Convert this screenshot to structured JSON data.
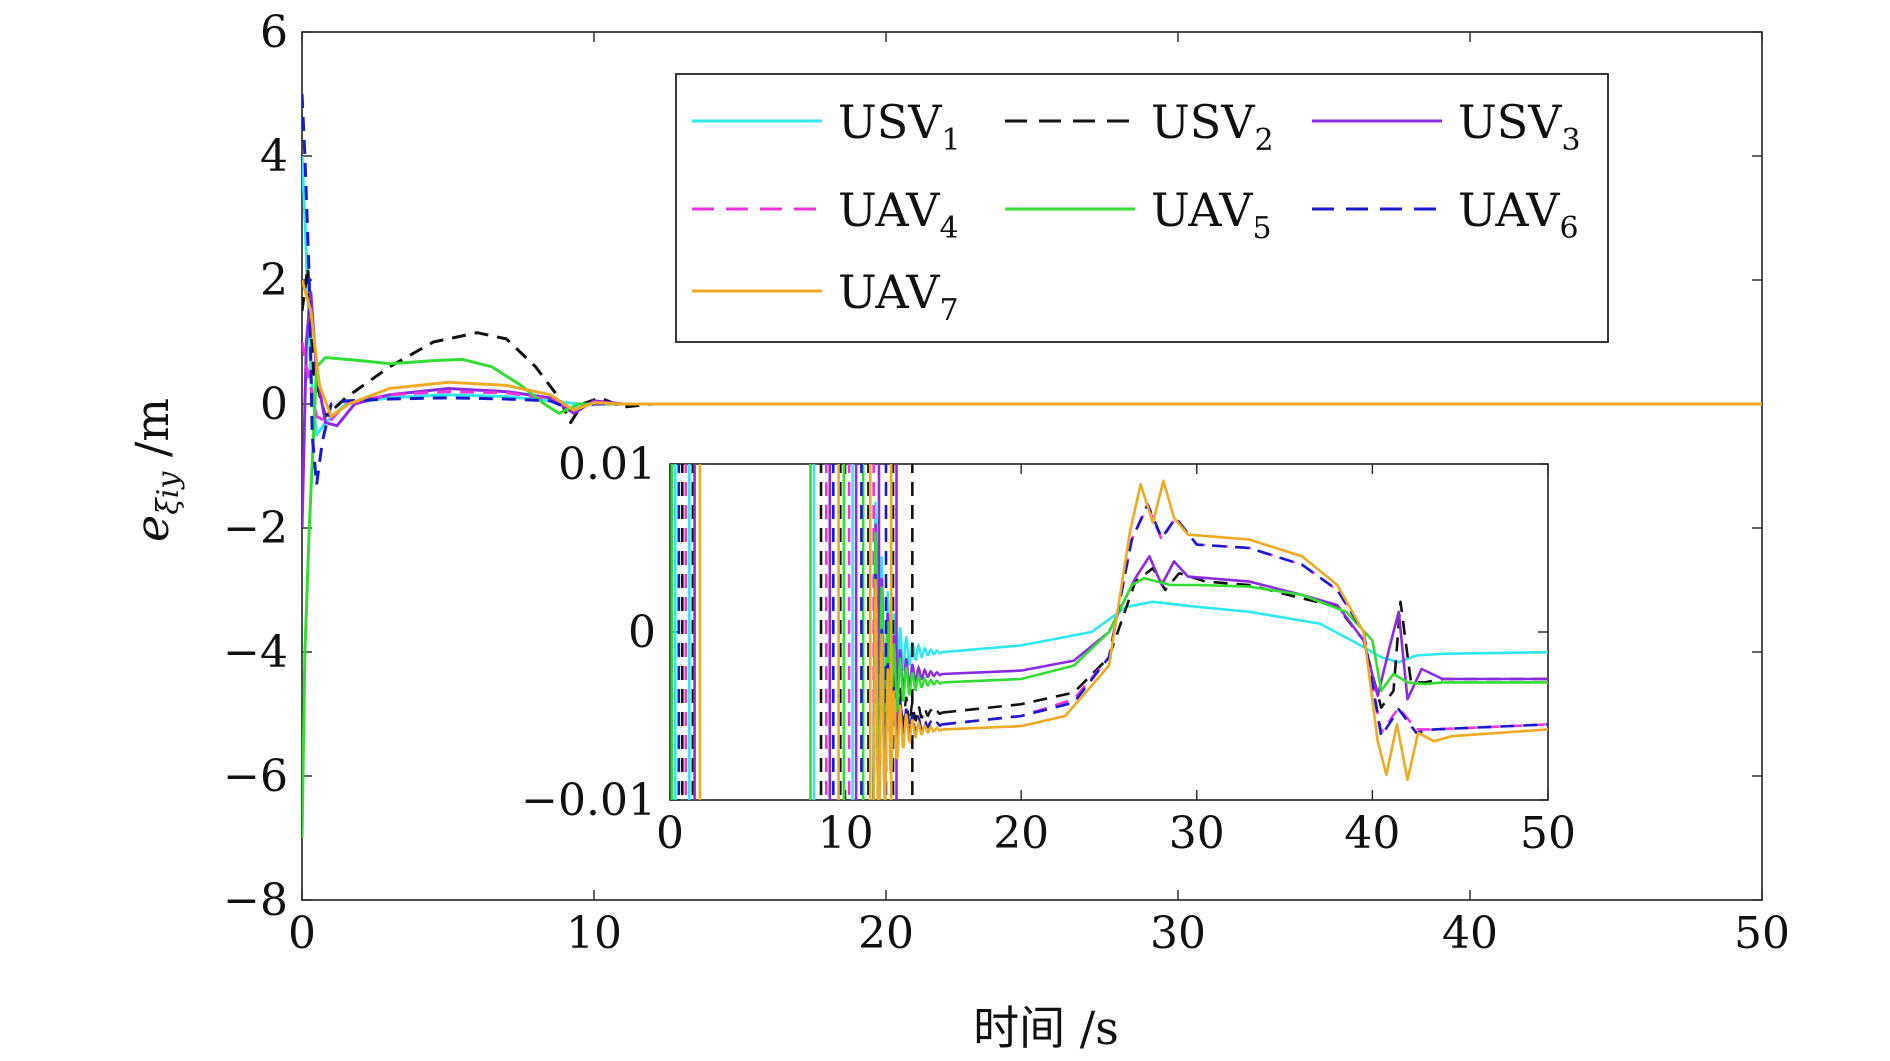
{
  "chart_data": [
    {
      "type": "line",
      "role": "main",
      "xlabel": "时间 /s",
      "ylabel": "e_ξiy /m",
      "ylabel_parts": {
        "base": "e",
        "sub": "ξiy",
        "unit": " /m"
      },
      "xlim": [
        0,
        50
      ],
      "ylim": [
        -8,
        6
      ],
      "xticks": [
        "0",
        "10",
        "20",
        "30",
        "40",
        "50"
      ],
      "yticks": [
        "6",
        "4",
        "2",
        "0",
        "−2",
        "−4",
        "−6",
        "−8"
      ],
      "grid": false,
      "legend_position": "top-right",
      "legend": [
        {
          "base": "USV",
          "sub": "1",
          "color": "#2ee8ee",
          "style": "solid"
        },
        {
          "base": "USV",
          "sub": "2",
          "color": "#111111",
          "style": "dashed"
        },
        {
          "base": "USV",
          "sub": "3",
          "color": "#8a2be2",
          "style": "solid"
        },
        {
          "base": "UAV",
          "sub": "4",
          "color": "#ee33dd",
          "style": "dashed"
        },
        {
          "base": "UAV",
          "sub": "5",
          "color": "#33dd33",
          "style": "solid"
        },
        {
          "base": "UAV",
          "sub": "6",
          "color": "#1a1acc",
          "style": "dashed"
        },
        {
          "base": "UAV",
          "sub": "7",
          "color": "#eeaa22",
          "style": "solid"
        }
      ],
      "series": [
        {
          "name": "USV1",
          "points": [
            [
              0,
              4.0
            ],
            [
              0.1,
              3.0
            ],
            [
              0.3,
              0.5
            ],
            [
              0.5,
              -0.5
            ],
            [
              0.8,
              -0.3
            ],
            [
              1.5,
              0.0
            ],
            [
              3,
              0.1
            ],
            [
              5,
              0.15
            ],
            [
              7,
              0.12
            ],
            [
              8.5,
              0.05
            ],
            [
              9.5,
              0.0
            ],
            [
              11,
              0.0
            ],
            [
              50,
              0.0
            ]
          ]
        },
        {
          "name": "USV2",
          "points": [
            [
              0,
              1.5
            ],
            [
              0.2,
              2.2
            ],
            [
              0.4,
              0.5
            ],
            [
              0.8,
              -0.2
            ],
            [
              1.5,
              0.1
            ],
            [
              3,
              0.6
            ],
            [
              4.5,
              1.0
            ],
            [
              6,
              1.15
            ],
            [
              7,
              1.05
            ],
            [
              8,
              0.6
            ],
            [
              8.8,
              0.1
            ],
            [
              9.2,
              -0.3
            ],
            [
              9.6,
              0.0
            ],
            [
              10.2,
              0.1
            ],
            [
              11,
              -0.05
            ],
            [
              12,
              0.0
            ],
            [
              50,
              0.0
            ]
          ]
        },
        {
          "name": "USV3",
          "points": [
            [
              0,
              -2.0
            ],
            [
              0.15,
              1.0
            ],
            [
              0.3,
              1.8
            ],
            [
              0.5,
              0.5
            ],
            [
              0.8,
              -0.3
            ],
            [
              1.2,
              -0.35
            ],
            [
              1.8,
              0.0
            ],
            [
              3,
              0.15
            ],
            [
              5,
              0.25
            ],
            [
              7,
              0.2
            ],
            [
              8.5,
              0.1
            ],
            [
              9.3,
              -0.15
            ],
            [
              10,
              0.05
            ],
            [
              11,
              0.0
            ],
            [
              50,
              0.0
            ]
          ]
        },
        {
          "name": "UAV4",
          "points": [
            [
              0,
              1.0
            ],
            [
              0.2,
              0.5
            ],
            [
              0.5,
              -0.2
            ],
            [
              0.9,
              -0.3
            ],
            [
              1.5,
              0.0
            ],
            [
              3,
              0.15
            ],
            [
              5,
              0.2
            ],
            [
              7,
              0.18
            ],
            [
              8.5,
              0.08
            ],
            [
              9.3,
              -0.1
            ],
            [
              10,
              0.03
            ],
            [
              11,
              0.0
            ],
            [
              50,
              0.0
            ]
          ]
        },
        {
          "name": "UAV5",
          "points": [
            [
              0,
              -7.0
            ],
            [
              0.1,
              -4.0
            ],
            [
              0.25,
              -2.0
            ],
            [
              0.5,
              0.6
            ],
            [
              0.8,
              0.75
            ],
            [
              2,
              0.7
            ],
            [
              3,
              0.65
            ],
            [
              4.5,
              0.7
            ],
            [
              5.5,
              0.72
            ],
            [
              6.5,
              0.6
            ],
            [
              7.5,
              0.3
            ],
            [
              8.3,
              0.0
            ],
            [
              8.8,
              -0.15
            ],
            [
              9.5,
              0.0
            ],
            [
              11,
              0.0
            ],
            [
              50,
              0.0
            ]
          ]
        },
        {
          "name": "UAV6",
          "points": [
            [
              0,
              5.0
            ],
            [
              0.1,
              4.0
            ],
            [
              0.25,
              2.0
            ],
            [
              0.35,
              -0.5
            ],
            [
              0.5,
              -1.3
            ],
            [
              0.7,
              -0.6
            ],
            [
              1.0,
              0.0
            ],
            [
              1.5,
              0.05
            ],
            [
              3,
              0.08
            ],
            [
              5,
              0.1
            ],
            [
              7,
              0.08
            ],
            [
              8.5,
              0.05
            ],
            [
              9.3,
              -0.1
            ],
            [
              10,
              0.0
            ],
            [
              50,
              0.0
            ]
          ]
        },
        {
          "name": "UAV7",
          "points": [
            [
              0,
              2.0
            ],
            [
              0.3,
              1.5
            ],
            [
              0.6,
              0.3
            ],
            [
              1.0,
              -0.2
            ],
            [
              1.6,
              0.0
            ],
            [
              3,
              0.25
            ],
            [
              5,
              0.35
            ],
            [
              7,
              0.3
            ],
            [
              8.5,
              0.15
            ],
            [
              9.3,
              -0.1
            ],
            [
              10,
              0.02
            ],
            [
              11,
              0.0
            ],
            [
              50,
              0.0
            ]
          ]
        }
      ]
    },
    {
      "type": "line",
      "role": "inset",
      "xlim": [
        0,
        50
      ],
      "ylim": [
        -0.01,
        0.01
      ],
      "xticks": [
        "0",
        "10",
        "20",
        "30",
        "40",
        "50"
      ],
      "yticks": [
        "0.01",
        "0",
        "−0.01"
      ],
      "series": [
        {
          "name": "USV1",
          "points": [
            [
              15.5,
              -0.0012
            ],
            [
              20,
              -0.0008
            ],
            [
              24,
              0.0
            ],
            [
              26,
              0.0015
            ],
            [
              27.5,
              0.0018
            ],
            [
              30,
              0.0015
            ],
            [
              33,
              0.0012
            ],
            [
              37,
              0.0005
            ],
            [
              39,
              -0.0006
            ],
            [
              40.5,
              -0.0015
            ],
            [
              41.5,
              -0.0018
            ],
            [
              42.5,
              -0.0014
            ],
            [
              44,
              -0.0013
            ],
            [
              50,
              -0.0012
            ]
          ]
        },
        {
          "name": "USV2",
          "points": [
            [
              15.5,
              -0.0048
            ],
            [
              20,
              -0.0043
            ],
            [
              23,
              -0.0036
            ],
            [
              25,
              -0.0015
            ],
            [
              26.5,
              0.003
            ],
            [
              27.5,
              0.0038
            ],
            [
              28.2,
              0.0025
            ],
            [
              29,
              0.0035
            ],
            [
              30.5,
              0.003
            ],
            [
              33,
              0.0028
            ],
            [
              36,
              0.002
            ],
            [
              38,
              0.0015
            ],
            [
              39.5,
              -0.0005
            ],
            [
              40.5,
              -0.0045
            ],
            [
              41.2,
              -0.0035
            ],
            [
              41.6,
              0.0018
            ],
            [
              42.2,
              -0.003
            ],
            [
              43,
              -0.003
            ],
            [
              44,
              -0.0028
            ],
            [
              50,
              -0.0028
            ]
          ]
        },
        {
          "name": "USV3",
          "points": [
            [
              15.5,
              -0.0025
            ],
            [
              20,
              -0.0023
            ],
            [
              23,
              -0.0017
            ],
            [
              25,
              0.0
            ],
            [
              26.5,
              0.0032
            ],
            [
              27.3,
              0.0045
            ],
            [
              28,
              0.0028
            ],
            [
              28.7,
              0.0042
            ],
            [
              29.5,
              0.0033
            ],
            [
              33,
              0.003
            ],
            [
              36,
              0.0022
            ],
            [
              38,
              0.0016
            ],
            [
              39.5,
              -0.0005
            ],
            [
              40.3,
              -0.0038
            ],
            [
              41,
              -0.0008
            ],
            [
              41.5,
              0.0012
            ],
            [
              42,
              -0.004
            ],
            [
              42.8,
              -0.0022
            ],
            [
              44,
              -0.0028
            ],
            [
              50,
              -0.0028
            ]
          ]
        },
        {
          "name": "UAV4",
          "points": [
            [
              15.5,
              -0.0055
            ],
            [
              20,
              -0.005
            ],
            [
              23,
              -0.004
            ],
            [
              25,
              -0.0015
            ],
            [
              26.3,
              0.0055
            ],
            [
              27.2,
              0.0075
            ],
            [
              28,
              0.0055
            ],
            [
              28.8,
              0.0068
            ],
            [
              30,
              0.0052
            ],
            [
              33,
              0.005
            ],
            [
              36,
              0.004
            ],
            [
              38,
              0.0025
            ],
            [
              39.5,
              0.0
            ],
            [
              40.5,
              -0.006
            ],
            [
              41.5,
              -0.0045
            ],
            [
              42.5,
              -0.0058
            ],
            [
              43.5,
              -0.0058
            ],
            [
              50,
              -0.0055
            ]
          ]
        },
        {
          "name": "UAV5",
          "points": [
            [
              15.5,
              -0.003
            ],
            [
              20,
              -0.0028
            ],
            [
              23,
              -0.002
            ],
            [
              25,
              0.0
            ],
            [
              26.3,
              0.0028
            ],
            [
              27,
              0.0032
            ],
            [
              28.5,
              0.0028
            ],
            [
              30,
              0.0028
            ],
            [
              33,
              0.0027
            ],
            [
              36,
              0.0022
            ],
            [
              38.5,
              0.0012
            ],
            [
              40,
              -0.0005
            ],
            [
              40.5,
              -0.0035
            ],
            [
              41.2,
              -0.0025
            ],
            [
              42,
              -0.003
            ],
            [
              43,
              -0.0031
            ],
            [
              44,
              -0.003
            ],
            [
              50,
              -0.003
            ]
          ]
        },
        {
          "name": "UAV6",
          "points": [
            [
              15.5,
              -0.0055
            ],
            [
              20,
              -0.005
            ],
            [
              23,
              -0.0042
            ],
            [
              25,
              -0.0015
            ],
            [
              26.3,
              0.0055
            ],
            [
              27.2,
              0.0076
            ],
            [
              28,
              0.0056
            ],
            [
              28.8,
              0.0068
            ],
            [
              30,
              0.0052
            ],
            [
              33,
              0.005
            ],
            [
              36,
              0.004
            ],
            [
              38,
              0.0025
            ],
            [
              39.5,
              0.0
            ],
            [
              40.5,
              -0.0062
            ],
            [
              41.5,
              -0.0046
            ],
            [
              42.5,
              -0.006
            ],
            [
              43.5,
              -0.0058
            ],
            [
              50,
              -0.0055
            ]
          ]
        },
        {
          "name": "UAV7",
          "points": [
            [
              15.5,
              -0.0058
            ],
            [
              20,
              -0.0056
            ],
            [
              22.5,
              -0.005
            ],
            [
              25,
              -0.002
            ],
            [
              26.2,
              0.006
            ],
            [
              26.8,
              0.0088
            ],
            [
              27.5,
              0.0065
            ],
            [
              28.1,
              0.009
            ],
            [
              28.7,
              0.0068
            ],
            [
              29.5,
              0.0058
            ],
            [
              33,
              0.0055
            ],
            [
              36,
              0.0045
            ],
            [
              38,
              0.0028
            ],
            [
              39.5,
              0.0
            ],
            [
              40.3,
              -0.0065
            ],
            [
              40.8,
              -0.0085
            ],
            [
              41.4,
              -0.0055
            ],
            [
              42,
              -0.0088
            ],
            [
              42.6,
              -0.006
            ],
            [
              43.5,
              -0.0065
            ],
            [
              44.5,
              -0.0062
            ],
            [
              50,
              -0.0058
            ]
          ]
        }
      ]
    }
  ]
}
